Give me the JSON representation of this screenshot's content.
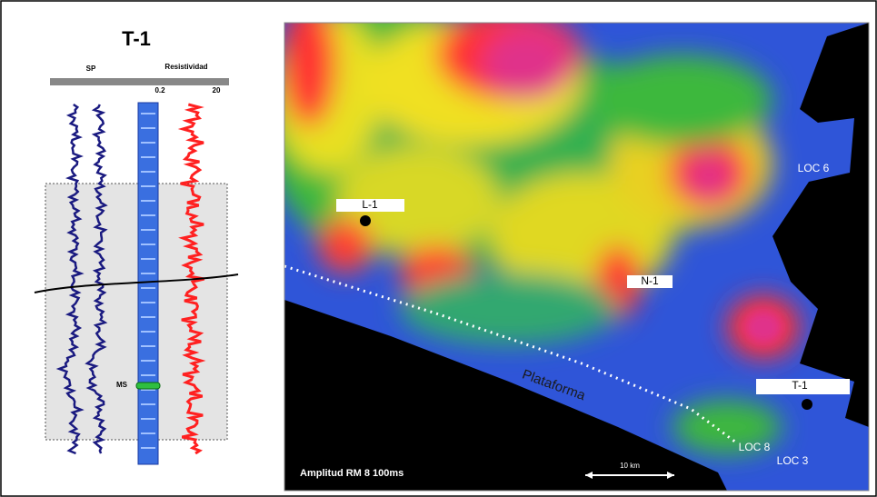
{
  "well_log": {
    "title": "T-1",
    "track_left": "SP",
    "track_right": "Resistividad",
    "scale_min": "0.2",
    "scale_max": "20",
    "marker": "MS"
  },
  "map": {
    "wells": [
      "L-1",
      "N-1",
      "LOC 6",
      "T-1",
      "LOC 8",
      "LOC 3"
    ],
    "shelf_label": "Plataforma",
    "caption": "Amplitud RM 8 100ms",
    "scale_bar": "10 km"
  }
}
